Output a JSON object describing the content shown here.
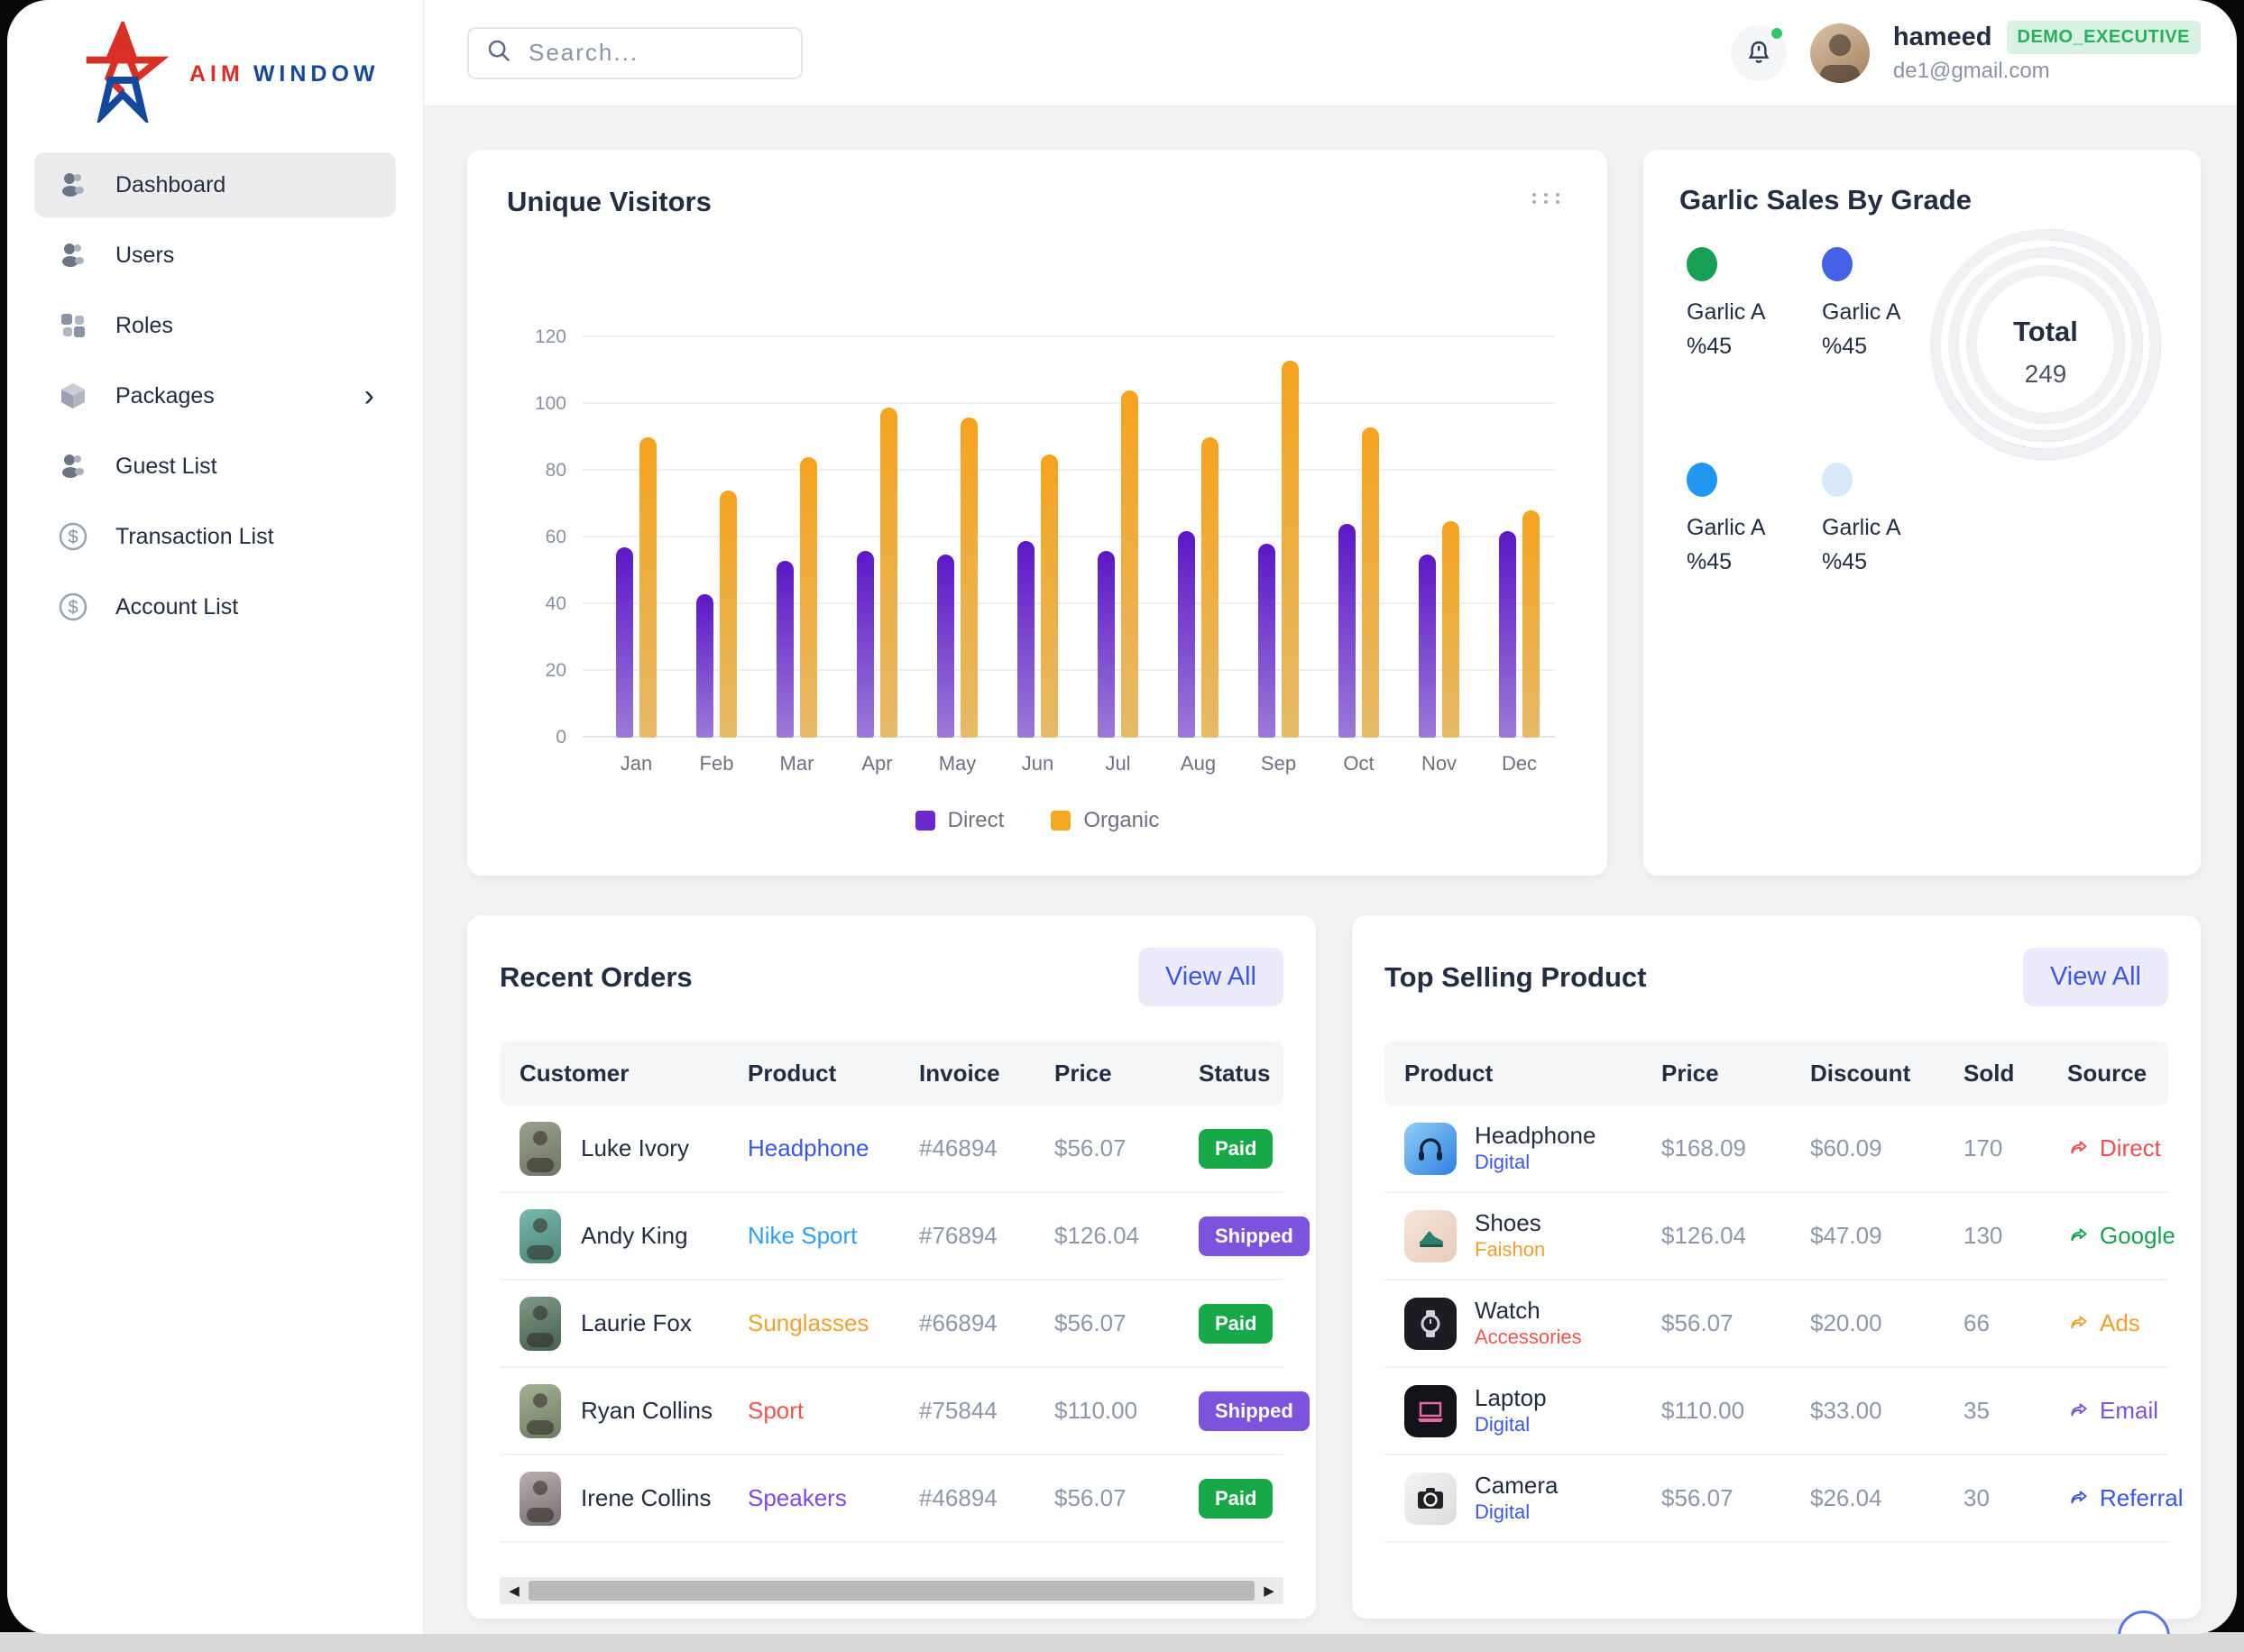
{
  "app": {
    "logo_aim": "AIM",
    "logo_window": "WINDOW"
  },
  "sidebar": {
    "items": [
      {
        "label": "Dashboard",
        "icon": "users-icon",
        "active": true
      },
      {
        "label": "Users",
        "icon": "users-icon"
      },
      {
        "label": "Roles",
        "icon": "grid-icon"
      },
      {
        "label": "Packages",
        "icon": "cube-icon",
        "chevron": true
      },
      {
        "label": "Guest List",
        "icon": "users-icon"
      },
      {
        "label": "Transaction List",
        "icon": "dollar-icon"
      },
      {
        "label": "Account List",
        "icon": "dollar-icon"
      }
    ]
  },
  "header": {
    "search_placeholder": "Search...",
    "user": {
      "name": "hameed",
      "role_badge": "DEMO_EXECUTIVE",
      "email": "de1@gmail.com"
    }
  },
  "unique_visitors": {
    "title": "Unique Visitors",
    "chart_data": {
      "type": "bar",
      "categories": [
        "Jan",
        "Feb",
        "Mar",
        "Apr",
        "May",
        "Jun",
        "Jul",
        "Aug",
        "Sep",
        "Oct",
        "Nov",
        "Dec"
      ],
      "series": [
        {
          "name": "Direct",
          "color": "#6d28c9",
          "values": [
            57,
            43,
            53,
            56,
            55,
            59,
            56,
            62,
            58,
            64,
            55,
            62
          ]
        },
        {
          "name": "Organic",
          "color": "#f7a823",
          "values": [
            90,
            74,
            84,
            99,
            96,
            85,
            104,
            90,
            113,
            93,
            65,
            68
          ]
        }
      ],
      "yticks": [
        0,
        20,
        40,
        60,
        80,
        100,
        120
      ],
      "ylim": [
        0,
        135
      ],
      "grid": true,
      "legend_position": "bottom"
    }
  },
  "garlic": {
    "title": "Garlic Sales By Grade",
    "legend": [
      {
        "label": "Garlic A %45",
        "color": "#17a053"
      },
      {
        "label": "Garlic A %45",
        "color": "#4461e8"
      },
      {
        "label": "Garlic A %45",
        "color": "#2196f3"
      },
      {
        "label": "Garlic A %45",
        "color": "#d8e9fa"
      }
    ],
    "total_label": "Total",
    "total_value": "249",
    "rings": [
      {
        "color": "#4a63e8",
        "sweep": 255
      },
      {
        "color": "#8e6cd8",
        "sweep": 238
      },
      {
        "color": "#d9a23f",
        "sweep": 208
      }
    ]
  },
  "recent_orders": {
    "title": "Recent Orders",
    "view_all": "View All",
    "columns": [
      "Customer",
      "Product",
      "Invoice",
      "Price",
      "Status"
    ],
    "rows": [
      {
        "customer": "Luke Ivory",
        "product": "Headphone",
        "product_color": "#3a57e8",
        "invoice": "#46894",
        "price": "$56.07",
        "status": "Paid",
        "status_color": "#17a948"
      },
      {
        "customer": "Andy King",
        "product": "Nike Sport",
        "product_color": "#2e9ff3",
        "invoice": "#76894",
        "price": "$126.04",
        "status": "Shipped",
        "status_color": "#7d53de"
      },
      {
        "customer": "Laurie Fox",
        "product": "Sunglasses",
        "product_color": "#f0a12f",
        "invoice": "#66894",
        "price": "$56.07",
        "status": "Paid",
        "status_color": "#17a948"
      },
      {
        "customer": "Ryan Collins",
        "product": "Sport",
        "product_color": "#f05452",
        "invoice": "#75844",
        "price": "$110.00",
        "status": "Shipped",
        "status_color": "#7d53de"
      },
      {
        "customer": "Irene Collins",
        "product": "Speakers",
        "product_color": "#7a49e8",
        "invoice": "#46894",
        "price": "$56.07",
        "status": "Paid",
        "status_color": "#17a948"
      }
    ]
  },
  "top_selling": {
    "title": "Top Selling Product",
    "view_all": "View All",
    "columns": [
      "Product",
      "Price",
      "Discount",
      "Sold",
      "Source"
    ],
    "rows": [
      {
        "product": "Headphone",
        "category": "Digital",
        "category_color": "#3a57e8",
        "icon": "headphone-icon",
        "price": "$168.09",
        "discount": "$60.09",
        "sold": "170",
        "source": "Direct",
        "source_color": "#ef4d56"
      },
      {
        "product": "Shoes",
        "category": "Faishon",
        "category_color": "#f0a12f",
        "icon": "shoe-icon",
        "price": "$126.04",
        "discount": "$47.09",
        "sold": "130",
        "source": "Google",
        "source_color": "#17a053"
      },
      {
        "product": "Watch",
        "category": "Accessories",
        "category_color": "#f05452",
        "icon": "watch-icon",
        "price": "$56.07",
        "discount": "$20.00",
        "sold": "66",
        "source": "Ads",
        "source_color": "#f0a12f"
      },
      {
        "product": "Laptop",
        "category": "Digital",
        "category_color": "#3a57e8",
        "icon": "laptop-icon",
        "price": "$110.00",
        "discount": "$33.00",
        "sold": "35",
        "source": "Email",
        "source_color": "#7a52e0"
      },
      {
        "product": "Camera",
        "category": "Digital",
        "category_color": "#3a57e8",
        "icon": "camera-icon",
        "price": "$56.07",
        "discount": "$26.04",
        "sold": "30",
        "source": "Referral",
        "source_color": "#3a57e8"
      }
    ]
  }
}
